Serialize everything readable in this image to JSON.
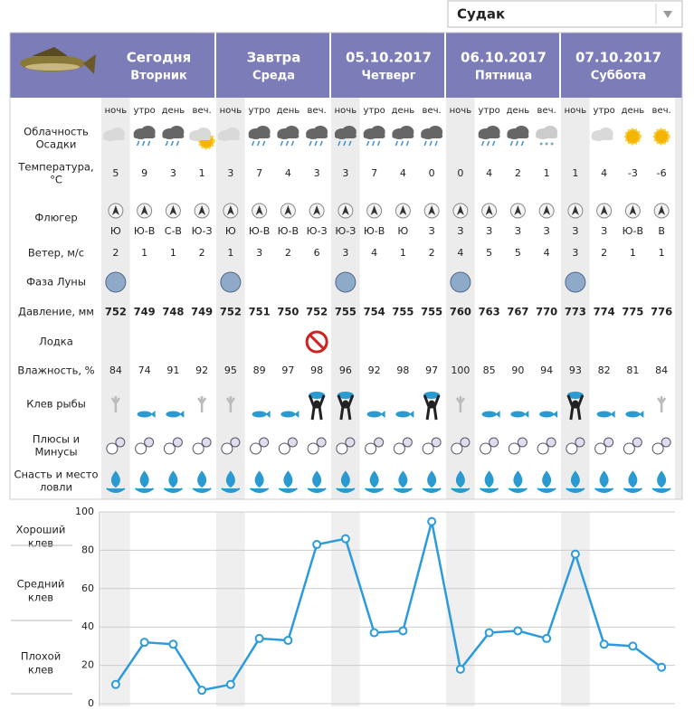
{
  "dropdown": "Судак",
  "days": [
    {
      "date": "Сегодня",
      "weekday": "Вторник"
    },
    {
      "date": "Завтра",
      "weekday": "Среда"
    },
    {
      "date": "05.10.2017",
      "weekday": "Четверг"
    },
    {
      "date": "06.10.2017",
      "weekday": "Пятница"
    },
    {
      "date": "07.10.2017",
      "weekday": "Суббота"
    }
  ],
  "times": [
    "ночь",
    "утро",
    "день",
    "веч."
  ],
  "row_labels": {
    "clouds": [
      "Облачность",
      "Осадки"
    ],
    "temperature": [
      "Температура,",
      "°C"
    ],
    "vane": [
      "Флюгер"
    ],
    "wind": [
      "Ветер, м/с"
    ],
    "moon": [
      "Фаза Луны"
    ],
    "pressure": [
      "Давление, мм"
    ],
    "boat": [
      "Лодка"
    ],
    "humidity": [
      "Влажность, %"
    ],
    "bite": [
      "Клев рыбы"
    ],
    "pros": [
      "Плюсы и",
      "Минусы"
    ],
    "gear": [
      "Снасть и место",
      "ловли"
    ]
  },
  "rows": {
    "temperature": [
      5,
      9,
      3,
      1,
      3,
      7,
      4,
      3,
      3,
      7,
      4,
      0,
      0,
      4,
      2,
      1,
      1,
      4,
      -3,
      -6
    ],
    "wind_direction": [
      "Ю",
      "Ю-В",
      "С-В",
      "Ю-З",
      "Ю",
      "Ю-В",
      "Ю-В",
      "Ю-З",
      "Ю-З",
      "Ю-В",
      "Ю",
      "З",
      "З",
      "З",
      "З",
      "З",
      "З",
      "З",
      "Ю-В",
      "В"
    ],
    "wind_speed": [
      2,
      1,
      1,
      2,
      1,
      3,
      2,
      6,
      3,
      4,
      1,
      2,
      4,
      5,
      5,
      4,
      3,
      2,
      1,
      1
    ],
    "pressure": [
      752,
      749,
      748,
      749,
      752,
      751,
      750,
      752,
      755,
      754,
      755,
      755,
      760,
      763,
      767,
      770,
      773,
      774,
      775,
      776
    ],
    "humidity": [
      84,
      74,
      91,
      92,
      95,
      89,
      97,
      98,
      96,
      92,
      98,
      97,
      100,
      85,
      90,
      94,
      93,
      82,
      81,
      84
    ]
  },
  "chart_data": {
    "type": "line",
    "values": [
      10,
      32,
      31,
      7,
      10,
      34,
      33,
      83,
      86,
      37,
      38,
      95,
      18,
      37,
      38,
      34,
      78,
      31,
      30,
      19
    ],
    "color": "#2b9bdc",
    "ylim": [
      0,
      100
    ],
    "yticks": [
      0,
      20,
      40,
      60,
      80,
      100
    ],
    "grid": true,
    "zone_labels": [
      [
        "Хороший",
        "клев"
      ],
      [
        "Средний",
        "клев"
      ],
      [
        "Плохой",
        "клев"
      ]
    ]
  }
}
